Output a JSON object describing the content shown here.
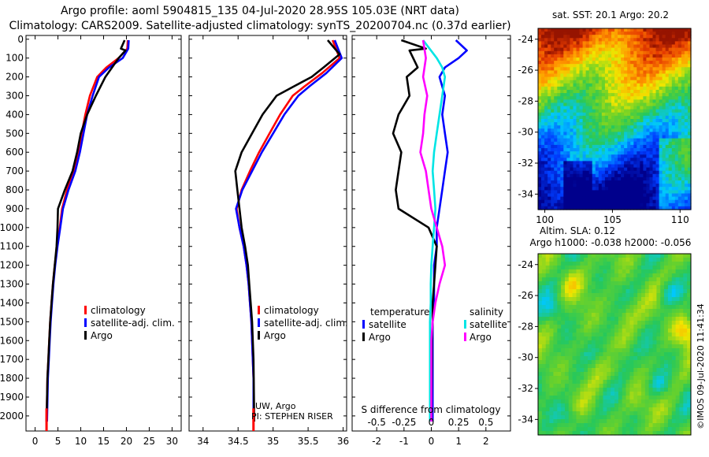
{
  "title_line1": "Argo profile: aoml 5904815_135 04-Jul-2020 28.95S 105.03E (NRT data)",
  "title_line2": "Climatology: CARS2009. Satellite-adjusted climatology: synTS_20200704.nc (0.37d earlier)",
  "colors": {
    "climatology": "#ff0000",
    "satellite": "#0000ff",
    "argo": "#000000",
    "sal_satellite": "#00e5e5",
    "sal_argo": "#ff00ff"
  },
  "chart_data": [
    {
      "type": "line",
      "name": "temperature-profile",
      "xlim": [
        -2,
        32
      ],
      "ylim": [
        2080,
        -20
      ],
      "xticks": [
        0,
        5,
        10,
        15,
        20,
        25,
        30
      ],
      "yticks": [
        0,
        100,
        200,
        300,
        400,
        500,
        600,
        700,
        800,
        900,
        1000,
        1100,
        1200,
        1300,
        1400,
        1500,
        1600,
        1700,
        1800,
        1900,
        2000
      ],
      "legend": {
        "climatology": "climatology",
        "satellite": "satellite-adj. clim.",
        "argo": "Argo"
      },
      "series": [
        {
          "name": "climatology",
          "color": "#ff0000",
          "x": [
            20.3,
            20.2,
            18.3,
            15.6,
            13.6,
            12.0,
            11.0,
            10.2,
            9.4,
            8.4,
            7.0,
            5.9,
            5.4,
            4.8,
            4.3,
            3.9,
            3.6,
            3.3,
            3.1,
            2.9,
            2.7,
            2.5
          ],
          "y": [
            5,
            50,
            100,
            150,
            200,
            300,
            400,
            500,
            600,
            700,
            800,
            900,
            1000,
            1100,
            1200,
            1300,
            1400,
            1500,
            1600,
            1700,
            1800,
            2030
          ]
        },
        {
          "name": "satellite",
          "color": "#0000ff",
          "x": [
            20.5,
            20.4,
            19.2,
            16.2,
            14.0,
            12.6,
            11.4,
            10.6,
            9.8,
            8.8,
            7.3,
            6.1,
            5.5,
            4.9,
            4.4,
            4.0,
            3.7,
            3.4,
            3.2,
            3.0,
            2.8,
            2.6
          ],
          "y": [
            5,
            50,
            100,
            150,
            200,
            300,
            400,
            500,
            600,
            700,
            800,
            900,
            1000,
            1100,
            1200,
            1300,
            1400,
            1500,
            1600,
            1700,
            1800,
            2030
          ]
        },
        {
          "name": "argo",
          "color": "#000000",
          "x": [
            19.6,
            18.8,
            19.8,
            18.3,
            15.4,
            13.3,
            11.4,
            10.0,
            9.2,
            8.2,
            6.5,
            5.0,
            4.9,
            4.7,
            4.3,
            3.9,
            3.6,
            3.3,
            3.1,
            2.9,
            2.7,
            2.5
          ],
          "y": [
            5,
            50,
            60,
            100,
            200,
            300,
            400,
            500,
            600,
            700,
            800,
            900,
            1000,
            1100,
            1200,
            1300,
            1400,
            1500,
            1600,
            1700,
            1800,
            2030
          ]
        }
      ]
    },
    {
      "type": "line",
      "name": "salinity-profile",
      "xlim": [
        33.8,
        36.05
      ],
      "ylim": [
        2080,
        -20
      ],
      "xticks": [
        34,
        34.5,
        35,
        35.5,
        36
      ],
      "legend": {
        "climatology": "climatology",
        "satellite": "satellite-adj. clim.",
        "argo": "Argo"
      },
      "annotation": [
        "UW, Argo",
        "PI: STEPHEN RISER"
      ],
      "series": [
        {
          "name": "climatology",
          "color": "#ff0000",
          "x": [
            35.85,
            35.95,
            35.7,
            35.45,
            35.28,
            35.1,
            34.95,
            34.8,
            34.67,
            34.55,
            34.48,
            34.52,
            34.58,
            34.62,
            34.65,
            34.67,
            34.69,
            34.7,
            34.71,
            34.72,
            34.72
          ],
          "y": [
            5,
            100,
            180,
            250,
            300,
            400,
            500,
            600,
            700,
            800,
            900,
            1000,
            1100,
            1200,
            1300,
            1400,
            1500,
            1600,
            1700,
            1800,
            2030
          ]
        },
        {
          "name": "satellite",
          "color": "#0000ff",
          "x": [
            35.88,
            35.98,
            35.76,
            35.52,
            35.36,
            35.16,
            35.0,
            34.84,
            34.7,
            34.56,
            34.47,
            34.52,
            34.58,
            34.62,
            34.65,
            34.67,
            34.69,
            34.7,
            34.71,
            34.72,
            34.72
          ],
          "y": [
            5,
            100,
            180,
            250,
            300,
            400,
            500,
            600,
            700,
            800,
            900,
            1000,
            1100,
            1200,
            1300,
            1400,
            1500,
            1600,
            1700,
            1800,
            2030
          ]
        },
        {
          "name": "argo",
          "color": "#000000",
          "x": [
            35.78,
            35.95,
            35.72,
            35.55,
            35.3,
            35.05,
            34.85,
            34.7,
            34.55,
            34.46,
            34.49,
            34.55,
            34.6,
            34.64,
            34.66,
            34.68,
            34.7,
            34.71,
            34.72,
            34.73
          ],
          "y": [
            5,
            80,
            150,
            200,
            250,
            300,
            400,
            500,
            600,
            700,
            800,
            1000,
            1100,
            1200,
            1300,
            1400,
            1500,
            1600,
            1700,
            2030
          ]
        }
      ]
    },
    {
      "type": "line",
      "name": "difference-from-climatology",
      "xlim": [
        -2.9,
        2.9
      ],
      "ylim": [
        2080,
        -20
      ],
      "xticks": [
        -2,
        -1,
        0,
        1,
        2
      ],
      "xticks_top": [
        -0.5,
        -0.25,
        0,
        0.25,
        0.5
      ],
      "xlabel": "S difference from climatology",
      "legend": {
        "temperature": "temperature",
        "salinity": "salinity",
        "t_satellite": "satellite",
        "t_argo": "Argo",
        "s_satellite": "satellite",
        "s_argo": "Argo"
      },
      "series": [
        {
          "name": "temp-satellite",
          "color": "#0000ff",
          "x": [
            0.9,
            1.3,
            1.0,
            0.5,
            0.3,
            0.5,
            0.4,
            0.5,
            0.6,
            0.5,
            0.4,
            0.3,
            0.2,
            0.2,
            0.1,
            0.1,
            0.1,
            0.05,
            0.05,
            0.05,
            0.05
          ],
          "y": [
            5,
            60,
            100,
            150,
            200,
            300,
            400,
            500,
            600,
            700,
            800,
            900,
            1000,
            1100,
            1200,
            1300,
            1400,
            1500,
            1600,
            1700,
            2030
          ]
        },
        {
          "name": "temp-argo",
          "color": "#000000",
          "x": [
            -1.1,
            -0.2,
            -0.8,
            -0.5,
            -0.9,
            -0.8,
            -1.2,
            -1.4,
            -1.1,
            -1.2,
            -1.3,
            -1.2,
            -0.1,
            0.2,
            0.15,
            0.1,
            0.05,
            0.05,
            0.02,
            0.02,
            0.0
          ],
          "y": [
            5,
            50,
            60,
            150,
            200,
            300,
            400,
            500,
            600,
            700,
            800,
            900,
            1000,
            1100,
            1200,
            1300,
            1400,
            1500,
            1600,
            1700,
            2030
          ]
        },
        {
          "name": "sal-satellite",
          "color": "#00e5e5",
          "x": [
            -0.3,
            0.2,
            0.4,
            0.5,
            0.4,
            0.3,
            0.2,
            0.1,
            0.05,
            0.1,
            0.15,
            0.1,
            0.05,
            0.0,
            -0.02,
            -0.02,
            -0.05,
            -0.05,
            -0.05,
            -0.05
          ],
          "y": [
            5,
            100,
            150,
            200,
            300,
            400,
            500,
            600,
            700,
            800,
            900,
            1000,
            1100,
            1200,
            1300,
            1400,
            1500,
            1600,
            1700,
            2030
          ]
        },
        {
          "name": "sal-argo",
          "color": "#ff00ff",
          "x": [
            -0.3,
            -0.2,
            -0.3,
            -0.15,
            -0.25,
            -0.3,
            -0.4,
            -0.2,
            -0.1,
            0.0,
            0.2,
            0.4,
            0.5,
            0.3,
            0.15,
            0.05,
            0.0,
            0.0,
            0.0
          ],
          "y": [
            5,
            100,
            200,
            300,
            400,
            500,
            600,
            700,
            800,
            900,
            1000,
            1100,
            1200,
            1300,
            1400,
            1500,
            1600,
            1700,
            2030
          ]
        }
      ]
    },
    {
      "type": "heatmap",
      "name": "satellite-sst-map",
      "title": "sat. SST: 20.1 Argo: 20.2",
      "xlim": [
        99.5,
        110.8
      ],
      "ylim": [
        -35,
        -23.3
      ],
      "xticks": [
        100,
        105,
        110
      ],
      "yticks": [
        -24,
        -26,
        -28,
        -30,
        -32,
        -34
      ],
      "color_range": [
        16,
        23
      ]
    },
    {
      "type": "heatmap",
      "name": "altimetry-sla-map",
      "title": "Altim. SLA: 0.12",
      "subtitle": "Argo h1000: -0.038 h2000: -0.056",
      "xlim": [
        99.5,
        110.8
      ],
      "ylim": [
        -35,
        -23.3
      ],
      "yticks": [
        -24,
        -26,
        -28,
        -30,
        -32,
        -34
      ]
    }
  ],
  "credit": "©IMOS 09-Jul-2020 11:41:34"
}
